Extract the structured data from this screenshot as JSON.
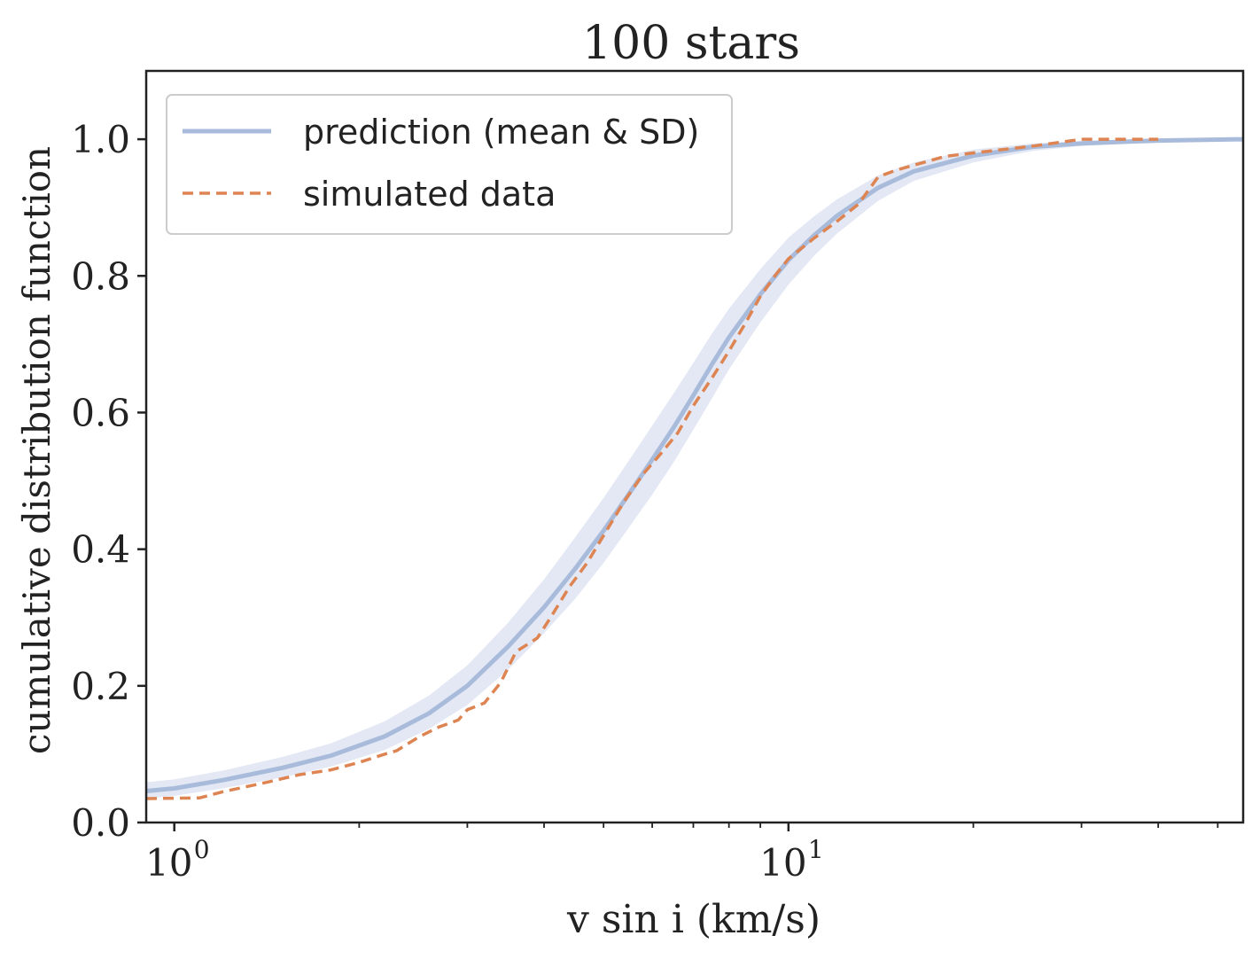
{
  "chart_data": {
    "type": "line",
    "title": "100 stars",
    "xlabel": "v sin i (km/s)",
    "ylabel": "cumulative distribution function",
    "xscale": "log",
    "xlim": [
      0.9,
      55
    ],
    "ylim": [
      0.0,
      1.1
    ],
    "yticks": [
      0.0,
      0.2,
      0.4,
      0.6,
      0.8,
      1.0
    ],
    "ytick_labels": [
      "0.0",
      "0.2",
      "0.4",
      "0.6",
      "0.8",
      "1.0"
    ],
    "xtick_labels": [
      {
        "value": 1,
        "base": "10",
        "exp": "0"
      },
      {
        "value": 10,
        "base": "10",
        "exp": "1"
      }
    ],
    "legend": {
      "placement": "upper-left",
      "entries": [
        {
          "label": "prediction (mean & SD)",
          "style": "solid",
          "color": "#a9bbdb"
        },
        {
          "label": "simulated data",
          "style": "dashed",
          "color": "#dd8452"
        }
      ]
    },
    "grid": false,
    "series": [
      {
        "name": "prediction (mean & SD)",
        "color": "#a9bbdb",
        "band_color": "#e3e8f4",
        "x": [
          0.9,
          1.0,
          1.2,
          1.5,
          1.8,
          2.2,
          2.6,
          3.0,
          3.5,
          4.0,
          4.5,
          5.0,
          5.5,
          6.0,
          6.5,
          7.0,
          7.5,
          8.0,
          9.0,
          10.0,
          11.0,
          12.0,
          14.0,
          16.0,
          20.0,
          25.0,
          30.0,
          40.0,
          55.0
        ],
        "mean": [
          0.046,
          0.05,
          0.062,
          0.08,
          0.098,
          0.126,
          0.16,
          0.2,
          0.258,
          0.315,
          0.372,
          0.427,
          0.481,
          0.531,
          0.578,
          0.625,
          0.67,
          0.71,
          0.773,
          0.823,
          0.859,
          0.888,
          0.929,
          0.953,
          0.976,
          0.989,
          0.994,
          0.998,
          1.0
        ],
        "lower": [
          0.035,
          0.039,
          0.05,
          0.066,
          0.082,
          0.106,
          0.137,
          0.172,
          0.224,
          0.277,
          0.328,
          0.38,
          0.432,
          0.48,
          0.527,
          0.575,
          0.62,
          0.663,
          0.732,
          0.787,
          0.829,
          0.862,
          0.91,
          0.939,
          0.966,
          0.983,
          0.99,
          0.996,
          0.999
        ],
        "upper": [
          0.059,
          0.063,
          0.076,
          0.096,
          0.116,
          0.148,
          0.186,
          0.23,
          0.293,
          0.356,
          0.418,
          0.475,
          0.53,
          0.581,
          0.628,
          0.673,
          0.715,
          0.752,
          0.81,
          0.856,
          0.887,
          0.912,
          0.947,
          0.966,
          0.985,
          0.994,
          0.997,
          0.999,
          1.0
        ]
      },
      {
        "name": "simulated data",
        "color": "#dd8452",
        "x": [
          0.9,
          1.1,
          1.2,
          1.4,
          1.6,
          1.8,
          2.0,
          2.2,
          2.3,
          2.5,
          2.7,
          2.9,
          3.0,
          3.2,
          3.4,
          3.6,
          3.9,
          4.1,
          4.4,
          4.7,
          5.0,
          5.4,
          5.8,
          6.2,
          6.6,
          7.0,
          7.5,
          8.0,
          8.5,
          9.0,
          9.5,
          10.0,
          11.0,
          12.0,
          13.0,
          14.0,
          15.0,
          16.0,
          18.0,
          20.0,
          25.0,
          30.0,
          40.0
        ],
        "y": [
          0.035,
          0.036,
          0.045,
          0.058,
          0.07,
          0.077,
          0.088,
          0.1,
          0.105,
          0.125,
          0.14,
          0.15,
          0.165,
          0.175,
          0.205,
          0.25,
          0.27,
          0.3,
          0.345,
          0.38,
          0.42,
          0.47,
          0.51,
          0.54,
          0.57,
          0.61,
          0.65,
          0.69,
          0.73,
          0.77,
          0.8,
          0.825,
          0.855,
          0.88,
          0.905,
          0.945,
          0.955,
          0.962,
          0.975,
          0.98,
          0.99,
          1.0,
          1.0
        ]
      }
    ]
  }
}
